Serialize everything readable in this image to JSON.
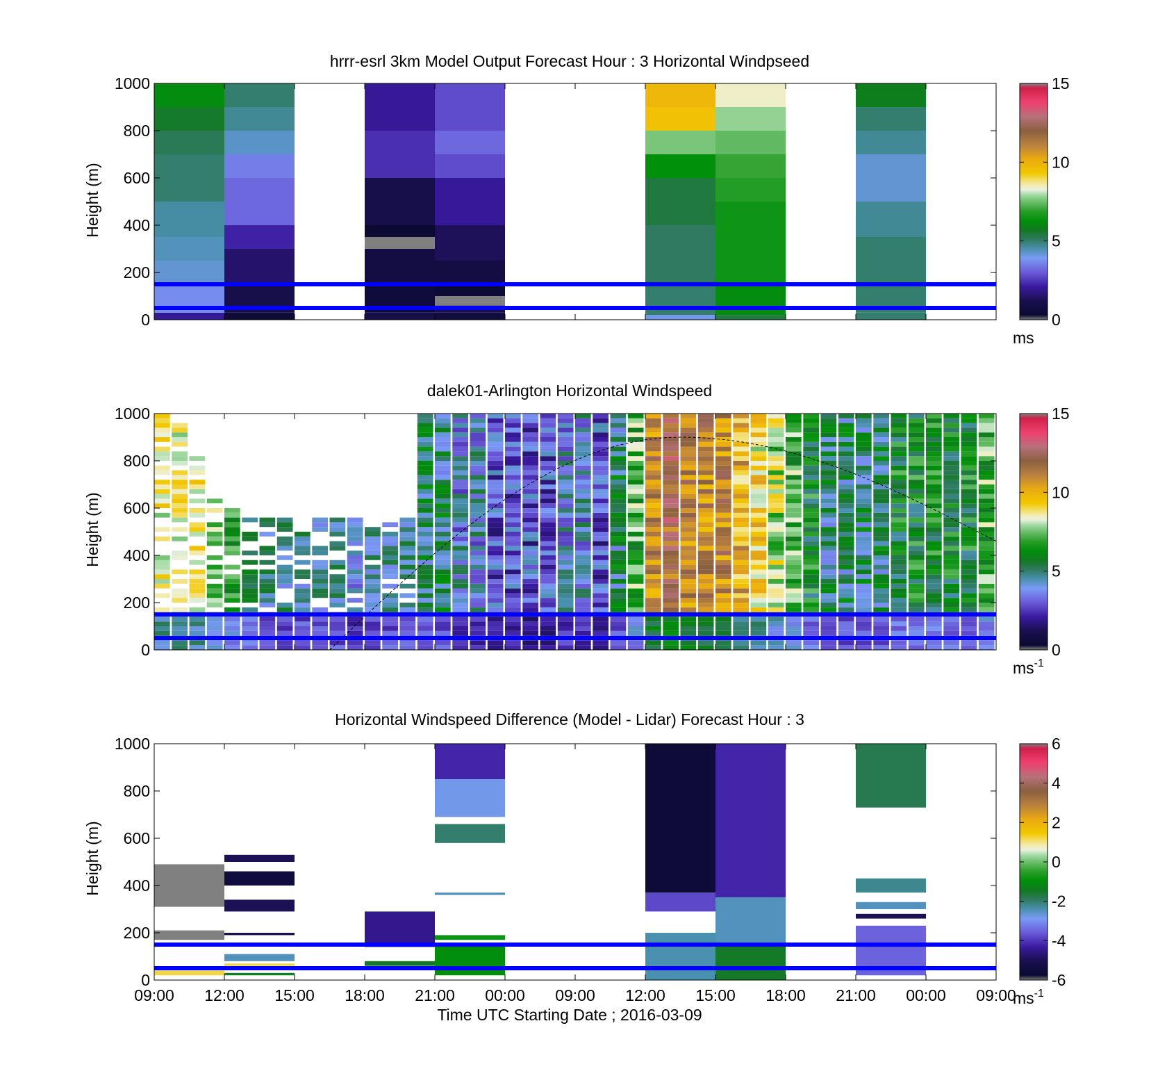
{
  "figure": {
    "xlabel": "Time UTC  Starting Date ; 2016-03-09",
    "x_ticks": [
      "09:00",
      "12:00",
      "15:00",
      "18:00",
      "21:00",
      "00:00",
      "09:00",
      "12:00",
      "15:00",
      "18:00",
      "21:00",
      "00:00",
      "09:00"
    ],
    "reference_lines_m": [
      150,
      50
    ],
    "reference_line_color": "#0000ff",
    "missing_color": "#808080"
  },
  "chart_data": [
    {
      "type": "heatmap",
      "title": "hrrr-esrl 3km Model Output   Forecast Hour : 3 Horizontal Windpseed",
      "ylabel": "Height (m)",
      "ylim": [
        0,
        1000
      ],
      "y_ticks": [
        "0",
        "200",
        "400",
        "600",
        "800",
        "1000"
      ],
      "colorbar": {
        "ticks": [
          "0",
          "5",
          "10",
          "15"
        ],
        "unit": "ms",
        "unit_sup": "",
        "range": [
          0,
          15
        ]
      },
      "columns": [
        {
          "x": "09:00",
          "profile": [
            {
              "h": [
                0,
                30
              ],
              "v": 2.0
            },
            {
              "h": [
                30,
                150
              ],
              "v": 3.7
            },
            {
              "h": [
                150,
                250
              ],
              "v": 4.2
            },
            {
              "h": [
                250,
                350
              ],
              "v": 4.4
            },
            {
              "h": [
                350,
                500
              ],
              "v": 4.6
            },
            {
              "h": [
                500,
                700
              ],
              "v": 5.0
            },
            {
              "h": [
                700,
                800
              ],
              "v": 5.2
            },
            {
              "h": [
                800,
                900
              ],
              "v": 5.6
            },
            {
              "h": [
                900,
                1000
              ],
              "v": 6.2
            }
          ]
        },
        {
          "x": "12:00",
          "profile": [
            {
              "h": [
                0,
                30
              ],
              "v": 0.5
            },
            {
              "h": [
                30,
                150
              ],
              "v": 1.0
            },
            {
              "h": [
                150,
                300
              ],
              "v": 1.5
            },
            {
              "h": [
                300,
                400
              ],
              "v": 2.2
            },
            {
              "h": [
                400,
                600
              ],
              "v": 3.2
            },
            {
              "h": [
                600,
                700
              ],
              "v": 3.5
            },
            {
              "h": [
                700,
                800
              ],
              "v": 4.3
            },
            {
              "h": [
                800,
                900
              ],
              "v": 4.7
            },
            {
              "h": [
                900,
                1000
              ],
              "v": 5.0
            }
          ]
        },
        {
          "x": "18:00",
          "profile": [
            {
              "h": [
                0,
                30
              ],
              "v": 1.0
            },
            {
              "h": [
                30,
                150
              ],
              "v": 0.6
            },
            {
              "h": [
                150,
                300
              ],
              "v": 0.8
            },
            {
              "h": [
                300,
                350
              ],
              "v": -1
            },
            {
              "h": [
                350,
                400
              ],
              "v": 0.3
            },
            {
              "h": [
                400,
                600
              ],
              "v": 1.0
            },
            {
              "h": [
                600,
                800
              ],
              "v": 2.4
            },
            {
              "h": [
                800,
                1000
              ],
              "v": 2.0
            }
          ]
        },
        {
          "x": "21:00",
          "profile": [
            {
              "h": [
                0,
                30
              ],
              "v": 0.7
            },
            {
              "h": [
                30,
                60
              ],
              "v": 1.2
            },
            {
              "h": [
                60,
                100
              ],
              "v": -1
            },
            {
              "h": [
                100,
                150
              ],
              "v": 0.4
            },
            {
              "h": [
                150,
                250
              ],
              "v": 0.8
            },
            {
              "h": [
                250,
                400
              ],
              "v": 1.3
            },
            {
              "h": [
                400,
                600
              ],
              "v": 2.0
            },
            {
              "h": [
                600,
                700
              ],
              "v": 2.8
            },
            {
              "h": [
                700,
                800
              ],
              "v": 3.2
            },
            {
              "h": [
                800,
                1000
              ],
              "v": 2.8
            }
          ]
        },
        {
          "x": "12:00",
          "profile": [
            {
              "h": [
                0,
                20
              ],
              "v": 4.0
            },
            {
              "h": [
                20,
                150
              ],
              "v": 5.0
            },
            {
              "h": [
                150,
                400
              ],
              "v": 5.1
            },
            {
              "h": [
                400,
                600
              ],
              "v": 5.4
            },
            {
              "h": [
                600,
                700
              ],
              "v": 6.3
            },
            {
              "h": [
                700,
                800
              ],
              "v": 7.6
            },
            {
              "h": [
                800,
                900
              ],
              "v": 9.5
            },
            {
              "h": [
                900,
                1000
              ],
              "v": 9.8
            }
          ]
        },
        {
          "x": "15:00",
          "profile": [
            {
              "h": [
                0,
                20
              ],
              "v": 5.4
            },
            {
              "h": [
                20,
                150
              ],
              "v": 6.2
            },
            {
              "h": [
                150,
                500
              ],
              "v": 6.5
            },
            {
              "h": [
                500,
                600
              ],
              "v": 6.8
            },
            {
              "h": [
                600,
                700
              ],
              "v": 7.0
            },
            {
              "h": [
                700,
                800
              ],
              "v": 7.4
            },
            {
              "h": [
                800,
                900
              ],
              "v": 7.8
            },
            {
              "h": [
                900,
                1000
              ],
              "v": 8.4
            }
          ]
        },
        {
          "x": "21:00",
          "profile": [
            {
              "h": [
                0,
                30
              ],
              "v": 5.0
            },
            {
              "h": [
                30,
                350
              ],
              "v": 5.0
            },
            {
              "h": [
                350,
                500
              ],
              "v": 4.7
            },
            {
              "h": [
                500,
                700
              ],
              "v": 4.2
            },
            {
              "h": [
                700,
                800
              ],
              "v": 4.7
            },
            {
              "h": [
                800,
                900
              ],
              "v": 5.0
            },
            {
              "h": [
                900,
                1000
              ],
              "v": 5.8
            }
          ]
        }
      ]
    },
    {
      "type": "heatmap",
      "title": "dalek01-Arlington  Horizontal Windspeed",
      "ylabel": "Height (m)",
      "ylim": [
        0,
        1000
      ],
      "y_ticks": [
        "0",
        "200",
        "400",
        "600",
        "800",
        "1000"
      ],
      "colorbar": {
        "ticks": [
          "0",
          "5",
          "10",
          "15"
        ],
        "unit": "ms",
        "unit_sup": "-1",
        "range": [
          0,
          15
        ]
      },
      "time_start_index": 0,
      "time_end_index": 48,
      "profile_spacing_hours": 1,
      "profiles_hours": [
        0,
        1,
        2,
        3,
        4,
        5,
        6,
        7,
        8,
        9,
        10,
        11,
        12,
        13,
        14,
        15,
        16,
        17,
        18,
        19,
        20,
        21,
        22,
        23,
        24,
        25,
        26,
        27,
        28,
        29,
        30,
        31,
        32,
        33,
        34,
        35,
        36,
        37,
        38,
        39,
        40,
        41,
        42,
        43,
        44,
        45,
        46,
        47
      ],
      "max_height_m": [
        1000,
        970,
        860,
        680,
        590,
        560,
        560,
        560,
        560,
        560,
        560,
        560,
        560,
        560,
        560,
        1000,
        1000,
        1000,
        1000,
        1000,
        1000,
        1000,
        1000,
        1000,
        1000,
        1000,
        1000,
        1000,
        1000,
        1000,
        1000,
        1000,
        1000,
        1000,
        1000,
        1000,
        1000,
        1000,
        1000,
        1000,
        1000,
        1000,
        1000,
        1000,
        1000,
        1000,
        1000,
        1000
      ],
      "mean_speed": [
        9,
        9,
        9,
        8,
        7,
        6,
        5,
        5,
        5,
        5,
        5,
        4,
        5,
        5,
        5,
        5,
        5,
        4,
        4,
        3,
        3,
        3,
        3,
        4,
        4,
        3,
        5,
        7,
        11,
        12,
        11,
        11,
        11,
        10,
        9,
        8,
        7,
        6,
        5,
        5,
        5,
        5,
        6,
        6,
        6,
        6,
        6,
        7
      ],
      "sun_arc": {
        "start_hours": 10,
        "peak_hours": 30,
        "peak_height_m": 900,
        "end_hours": 48,
        "end_height_m": 460
      }
    },
    {
      "type": "heatmap",
      "title": "Horizontal Windspeed Difference (Model - Lidar) Forecast Hour : 3",
      "ylabel": "Height (m)",
      "ylim": [
        0,
        1000
      ],
      "y_ticks": [
        "0",
        "200",
        "400",
        "600",
        "800",
        "1000"
      ],
      "colorbar": {
        "ticks": [
          "-6",
          "-4",
          "-2",
          "0",
          "2",
          "4",
          "6"
        ],
        "unit": "ms",
        "unit_sup": "-1",
        "range": [
          -6,
          6
        ]
      },
      "columns": [
        {
          "x": "09:00",
          "profile": [
            {
              "h": [
                20,
                40
              ],
              "v": 1.2
            },
            {
              "h": [
                170,
                210
              ],
              "v": -9
            },
            {
              "h": [
                310,
                490
              ],
              "v": -9
            }
          ]
        },
        {
          "x": "12:00",
          "profile": [
            {
              "h": [
                20,
                30
              ],
              "v": -1.5
            },
            {
              "h": [
                60,
                70
              ],
              "v": 1.2
            },
            {
              "h": [
                80,
                110
              ],
              "v": -2.5
            },
            {
              "h": [
                190,
                200
              ],
              "v": -5
            },
            {
              "h": [
                290,
                340
              ],
              "v": -5
            },
            {
              "h": [
                400,
                460
              ],
              "v": -5.5
            },
            {
              "h": [
                500,
                530
              ],
              "v": -5
            }
          ]
        },
        {
          "x": "18:00",
          "profile": [
            {
              "h": [
                60,
                80
              ],
              "v": -1.5
            },
            {
              "h": [
                140,
                290
              ],
              "v": -4.5
            }
          ]
        },
        {
          "x": "21:00",
          "profile": [
            {
              "h": [
                20,
                150
              ],
              "v": -1
            },
            {
              "h": [
                170,
                190
              ],
              "v": -0.8
            },
            {
              "h": [
                360,
                370
              ],
              "v": -2.5
            },
            {
              "h": [
                580,
                660
              ],
              "v": -2
            },
            {
              "h": [
                690,
                850
              ],
              "v": -2.8
            },
            {
              "h": [
                850,
                1000
              ],
              "v": -4.2
            }
          ]
        },
        {
          "x": "12:00",
          "profile": [
            {
              "h": [
                0,
                200
              ],
              "v": -2.4
            },
            {
              "h": [
                290,
                370
              ],
              "v": -3.8
            },
            {
              "h": [
                370,
                1000
              ],
              "v": -5.6
            }
          ]
        },
        {
          "x": "15:00",
          "profile": [
            {
              "h": [
                0,
                150
              ],
              "v": -1.5
            },
            {
              "h": [
                150,
                350
              ],
              "v": -2.5
            },
            {
              "h": [
                350,
                1000
              ],
              "v": -4.2
            }
          ]
        },
        {
          "x": "21:00",
          "profile": [
            {
              "h": [
                20,
                230
              ],
              "v": -3.5
            },
            {
              "h": [
                260,
                280
              ],
              "v": -5
            },
            {
              "h": [
                300,
                330
              ],
              "v": -2.5
            },
            {
              "h": [
                370,
                430
              ],
              "v": -2.2
            },
            {
              "h": [
                730,
                1000
              ],
              "v": -1.8
            }
          ]
        }
      ]
    }
  ]
}
